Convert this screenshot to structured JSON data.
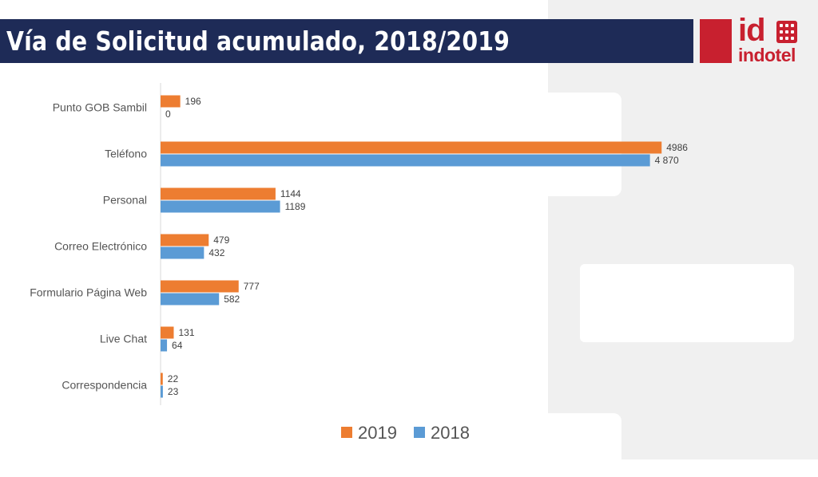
{
  "slide": {
    "title": "Vía de Solicitud acumulado, 2018/2019",
    "logo": {
      "mark": "id",
      "name": "indotel",
      "color": "#c8202f"
    },
    "title_bar_color": "#1e2b57"
  },
  "chart_data": {
    "type": "bar",
    "orientation": "horizontal",
    "title": "",
    "xlabel": "",
    "ylabel": "",
    "categories": [
      "Punto GOB Sambil",
      "Teléfono",
      "Personal",
      "Correo Electrónico",
      "Formulario Página Web",
      "Live Chat",
      "Correspondencia"
    ],
    "series": [
      {
        "name": "2019",
        "color": "#ed7d31",
        "values": [
          196,
          4986,
          1144,
          479,
          777,
          131,
          22
        ],
        "labels": [
          "196",
          "4986",
          "1144",
          "479",
          "777",
          "131",
          "22"
        ]
      },
      {
        "name": "2018",
        "color": "#5b9bd5",
        "values": [
          0,
          4870,
          1189,
          432,
          582,
          64,
          23
        ],
        "labels": [
          "0",
          "4 870",
          "1189",
          "432",
          "582",
          "64",
          "23"
        ]
      }
    ],
    "xlim": [
      0,
      5000
    ],
    "grid": false,
    "legend": "bottom"
  }
}
